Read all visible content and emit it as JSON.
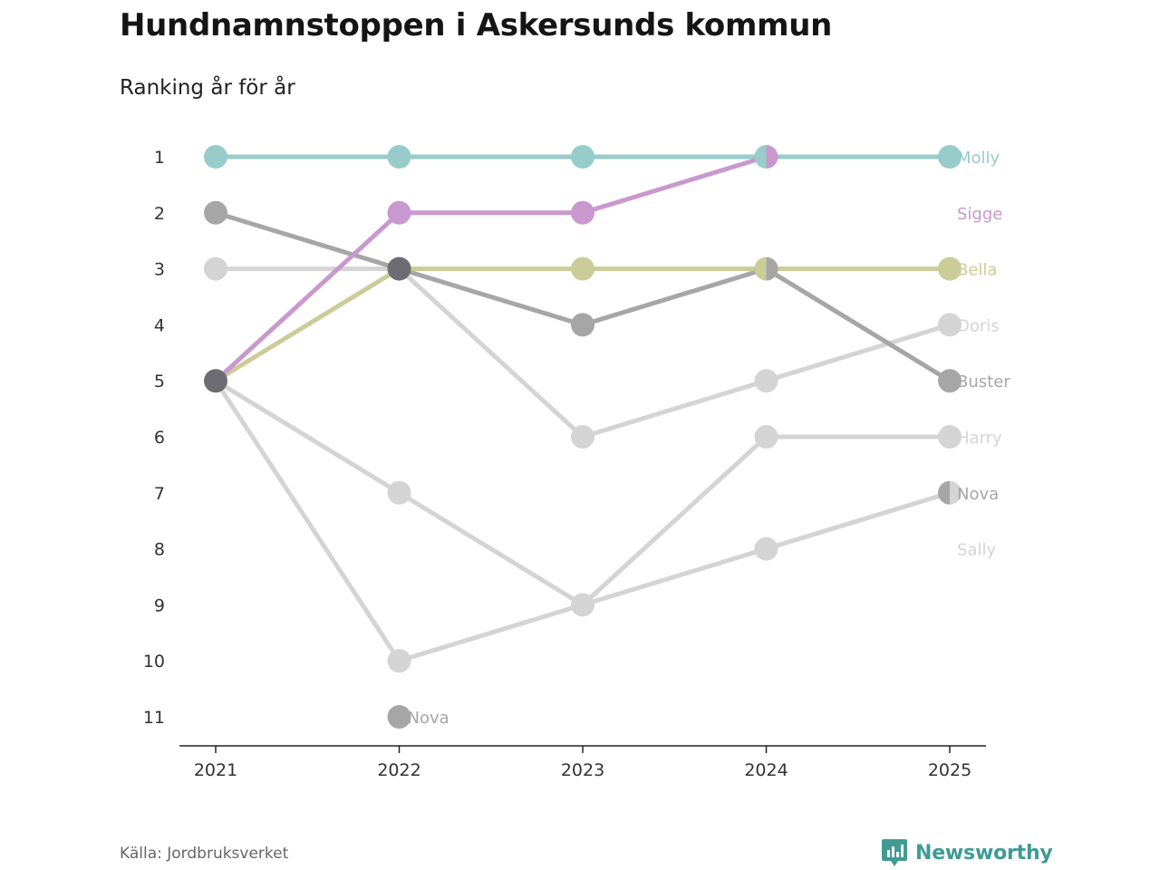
{
  "title": "Hundnamnstoppen i Askersunds kommun",
  "subtitle": "Ranking år för år",
  "source": "Källa: Jordbruksverket",
  "brand": "Newsworthy",
  "icons": {
    "brand_logo": "chart-icon"
  },
  "colors": {
    "Molly": "#97cccb",
    "Sigge": "#c998ce",
    "Bella": "#cccc99",
    "Buster": "#a6a6a6",
    "Doris": "#d4d4d4",
    "Harry": "#d4d4d4",
    "Nova": "#a6a6a6",
    "Sally": "#d4d4d4",
    "shared": "#6c6c72",
    "brand": "#3f9b94"
  },
  "chart_data": {
    "type": "line",
    "title": "Hundnamnstoppen i Askersunds kommun",
    "subtitle": "Ranking år för år",
    "xlabel": "",
    "ylabel": "",
    "x": [
      "2021",
      "2022",
      "2023",
      "2024",
      "2025"
    ],
    "y_ticks": [
      "1",
      "2",
      "3",
      "4",
      "5",
      "6",
      "7",
      "8",
      "9",
      "10",
      "11"
    ],
    "ylim": [
      1,
      11
    ],
    "y_inverted": true,
    "series": [
      {
        "name": "Molly",
        "label": "Molly",
        "values": [
          1,
          1,
          1,
          1,
          1
        ]
      },
      {
        "name": "Sigge",
        "label": "Sigge",
        "values": [
          5,
          2,
          2,
          1,
          null
        ]
      },
      {
        "name": "Bella",
        "label": "Bella",
        "values": [
          5,
          3,
          3,
          3,
          3
        ]
      },
      {
        "name": "Buster",
        "label": "Buster",
        "values": [
          2,
          3,
          4,
          3,
          5
        ]
      },
      {
        "name": "Doris",
        "label": "Doris",
        "values": [
          3,
          3,
          6,
          5,
          4
        ]
      },
      {
        "name": "Harry",
        "label": "Harry",
        "values": [
          5,
          10,
          9,
          6,
          6
        ]
      },
      {
        "name": "Nova",
        "label": "Nova",
        "values": [
          null,
          11,
          null,
          null,
          7
        ]
      },
      {
        "name": "Sally",
        "label": "Sally",
        "values": [
          5,
          7,
          9,
          8,
          7
        ]
      }
    ],
    "annotations": [
      {
        "text": "Nova",
        "x": "2022",
        "y": 11
      }
    ]
  }
}
